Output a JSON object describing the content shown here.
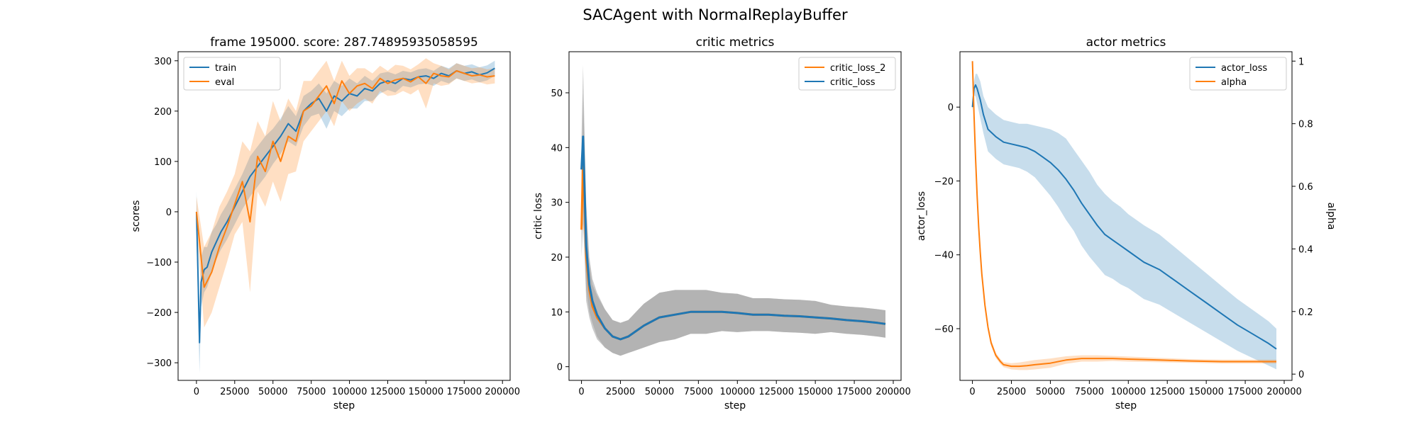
{
  "figure": {
    "title": "SACAgent with NormalReplayBuffer",
    "colors": {
      "blue": "#1f77b4",
      "orange": "#ff7f0e",
      "gray": "#a0a0a0"
    }
  },
  "chart_data": [
    {
      "type": "line",
      "title": "frame 195000. score: 287.74895935058595",
      "xlabel": "step",
      "ylabel": "scores",
      "xlim": [
        -12000,
        205000
      ],
      "ylim": [
        -335,
        318
      ],
      "xticks": [
        0,
        25000,
        50000,
        75000,
        100000,
        125000,
        150000,
        175000,
        200000
      ],
      "yticks": [
        -300,
        -200,
        -100,
        0,
        100,
        200,
        300
      ],
      "legend": "top-left",
      "series": [
        {
          "name": "train",
          "color": "#1f77b4",
          "x": [
            0,
            1000,
            2000,
            3000,
            5000,
            7000,
            10000,
            13000,
            16000,
            20000,
            25000,
            30000,
            35000,
            40000,
            45000,
            50000,
            55000,
            60000,
            65000,
            70000,
            75000,
            80000,
            85000,
            90000,
            95000,
            100000,
            105000,
            110000,
            115000,
            120000,
            125000,
            130000,
            135000,
            140000,
            145000,
            150000,
            155000,
            160000,
            165000,
            170000,
            175000,
            180000,
            185000,
            190000,
            195000
          ],
          "y": [
            0,
            -120,
            -260,
            -140,
            -115,
            -110,
            -80,
            -60,
            -40,
            -20,
            10,
            40,
            70,
            90,
            110,
            130,
            150,
            175,
            160,
            200,
            215,
            225,
            200,
            230,
            220,
            235,
            230,
            245,
            240,
            255,
            260,
            255,
            265,
            262,
            268,
            270,
            265,
            275,
            270,
            280,
            275,
            278,
            272,
            276,
            285
          ],
          "band": [
            40,
            70,
            60,
            50,
            45,
            40,
            40,
            35,
            35,
            35,
            35,
            35,
            40,
            40,
            40,
            35,
            35,
            35,
            30,
            30,
            25,
            30,
            35,
            30,
            30,
            30,
            25,
            25,
            20,
            20,
            18,
            18,
            15,
            15,
            15,
            15,
            15,
            15,
            15,
            15,
            15,
            15,
            15,
            15,
            15
          ]
        },
        {
          "name": "eval",
          "color": "#ff7f0e",
          "x": [
            0,
            5000,
            10000,
            15000,
            20000,
            25000,
            30000,
            35000,
            40000,
            45000,
            50000,
            55000,
            60000,
            65000,
            70000,
            75000,
            80000,
            85000,
            90000,
            95000,
            100000,
            105000,
            110000,
            115000,
            120000,
            125000,
            130000,
            135000,
            140000,
            145000,
            150000,
            155000,
            160000,
            165000,
            170000,
            175000,
            180000,
            185000,
            190000,
            195000
          ],
          "y": [
            0,
            -150,
            -120,
            -70,
            -30,
            15,
            60,
            -20,
            110,
            80,
            140,
            100,
            150,
            140,
            200,
            210,
            230,
            250,
            215,
            260,
            235,
            250,
            255,
            245,
            265,
            255,
            262,
            265,
            258,
            268,
            255,
            275,
            270,
            268,
            280,
            275,
            270,
            272,
            268,
            270
          ],
          "band": [
            30,
            80,
            80,
            80,
            70,
            60,
            80,
            140,
            70,
            70,
            80,
            80,
            75,
            60,
            60,
            50,
            50,
            50,
            45,
            40,
            35,
            35,
            30,
            30,
            25,
            25,
            30,
            25,
            25,
            25,
            50,
            20,
            20,
            15,
            15,
            15,
            15,
            15,
            15,
            15
          ]
        }
      ]
    },
    {
      "type": "line",
      "title": "critic metrics",
      "xlabel": "step",
      "ylabel": "critic loss",
      "xlim": [
        -8000,
        205000
      ],
      "ylim": [
        -2.5,
        57.5
      ],
      "xticks": [
        0,
        25000,
        50000,
        75000,
        100000,
        125000,
        150000,
        175000,
        200000
      ],
      "yticks": [
        0,
        10,
        20,
        30,
        40,
        50
      ],
      "legend": "top-right",
      "series": [
        {
          "name": "critic_loss_2",
          "color": "#ff7f0e",
          "x": [
            0,
            1000,
            2000,
            3000,
            5000,
            7000,
            10000,
            15000,
            20000,
            25000,
            30000,
            35000,
            40000,
            50000,
            60000,
            70000,
            80000,
            90000,
            100000,
            110000,
            120000,
            130000,
            140000,
            150000,
            160000,
            170000,
            180000,
            190000,
            195000
          ],
          "y": [
            25,
            38,
            30,
            20,
            14,
            11,
            9,
            7,
            5.5,
            5,
            5.5,
            6.5,
            7.5,
            9,
            9.5,
            10,
            10,
            10,
            9.8,
            9.5,
            9.5,
            9.3,
            9.2,
            9,
            8.8,
            8.5,
            8.3,
            8,
            7.8
          ],
          "band": [
            5,
            12,
            10,
            8,
            5,
            4,
            4,
            3.5,
            3,
            3,
            3,
            3.5,
            4,
            4.5,
            4.5,
            4,
            4,
            3.5,
            3.5,
            3,
            3,
            3,
            3,
            3,
            2.5,
            2.5,
            2.5,
            2.5,
            2.5
          ]
        },
        {
          "name": "critic_loss",
          "color": "#1f77b4",
          "x": [
            0,
            1000,
            2000,
            3000,
            5000,
            7000,
            10000,
            15000,
            20000,
            25000,
            30000,
            35000,
            40000,
            50000,
            60000,
            70000,
            80000,
            90000,
            100000,
            110000,
            120000,
            130000,
            140000,
            150000,
            160000,
            170000,
            180000,
            190000,
            195000
          ],
          "y": [
            36,
            42,
            32,
            22,
            15,
            12,
            9.5,
            7,
            5.5,
            5,
            5.5,
            6.5,
            7.5,
            9,
            9.5,
            10,
            10,
            10,
            9.8,
            9.5,
            9.5,
            9.3,
            9.2,
            9,
            8.8,
            8.5,
            8.3,
            8,
            7.8
          ],
          "band": [
            6,
            13,
            10,
            8,
            5,
            4,
            4,
            3.5,
            3,
            3,
            3,
            3.5,
            4,
            4.5,
            4.5,
            4,
            4,
            3.5,
            3.5,
            3,
            3,
            3,
            3,
            3,
            2.5,
            2.5,
            2.5,
            2.5,
            2.5
          ]
        }
      ]
    },
    {
      "type": "line",
      "title": "actor metrics",
      "xlabel": "step",
      "ylabel": "actor_loss",
      "ylabel_right": "alpha",
      "xlim": [
        -8000,
        205000
      ],
      "ylim": [
        -74,
        15
      ],
      "ylim_right": [
        -0.02,
        1.03
      ],
      "xticks": [
        0,
        25000,
        50000,
        75000,
        100000,
        125000,
        150000,
        175000,
        200000
      ],
      "yticks": [
        -60,
        -40,
        -20,
        0
      ],
      "yticks_right": [
        0.0,
        0.2,
        0.4,
        0.6,
        0.8,
        1.0
      ],
      "legend": "top-right",
      "series": [
        {
          "name": "actor_loss",
          "axis": "left",
          "color": "#1f77b4",
          "x": [
            0,
            1000,
            2000,
            3000,
            5000,
            7000,
            10000,
            15000,
            20000,
            25000,
            30000,
            35000,
            40000,
            45000,
            50000,
            55000,
            60000,
            65000,
            70000,
            75000,
            80000,
            85000,
            90000,
            95000,
            100000,
            110000,
            120000,
            130000,
            140000,
            150000,
            160000,
            170000,
            180000,
            190000,
            195000
          ],
          "y": [
            0,
            5,
            6,
            5,
            2,
            -2,
            -6,
            -8,
            -9.5,
            -10,
            -10.5,
            -11,
            -12,
            -13.5,
            -15,
            -17,
            -19.5,
            -22.5,
            -26,
            -29,
            -32,
            -34.5,
            -36,
            -37.5,
            -39,
            -42,
            -44,
            -47,
            -50,
            -53,
            -56,
            -59,
            -61.5,
            -64,
            -65.5
          ],
          "band": [
            1,
            2,
            3,
            4,
            5,
            5,
            6,
            6,
            6,
            6,
            6,
            6.5,
            7,
            8,
            9,
            10,
            11,
            11,
            11.5,
            11.5,
            11,
            11,
            10.5,
            10.5,
            10,
            10,
            9.5,
            9,
            8.5,
            8,
            7.5,
            7,
            6.5,
            6,
            5.5
          ]
        },
        {
          "name": "alpha",
          "axis": "right",
          "color": "#ff7f0e",
          "x": [
            0,
            1000,
            2000,
            3000,
            4000,
            5000,
            6000,
            8000,
            10000,
            12000,
            15000,
            18000,
            20000,
            25000,
            30000,
            35000,
            40000,
            50000,
            60000,
            70000,
            80000,
            90000,
            100000,
            120000,
            140000,
            160000,
            180000,
            195000
          ],
          "y": [
            1.0,
            0.83,
            0.69,
            0.57,
            0.47,
            0.39,
            0.32,
            0.22,
            0.15,
            0.1,
            0.06,
            0.04,
            0.03,
            0.025,
            0.025,
            0.027,
            0.03,
            0.035,
            0.045,
            0.05,
            0.05,
            0.05,
            0.048,
            0.045,
            0.042,
            0.04,
            0.04,
            0.04
          ],
          "band": [
            0,
            0.01,
            0.01,
            0.01,
            0.01,
            0.01,
            0.01,
            0.01,
            0.01,
            0.01,
            0.008,
            0.008,
            0.008,
            0.01,
            0.012,
            0.014,
            0.015,
            0.015,
            0.012,
            0.01,
            0.01,
            0.008,
            0.008,
            0.007,
            0.006,
            0.006,
            0.006,
            0.006
          ]
        }
      ]
    }
  ]
}
